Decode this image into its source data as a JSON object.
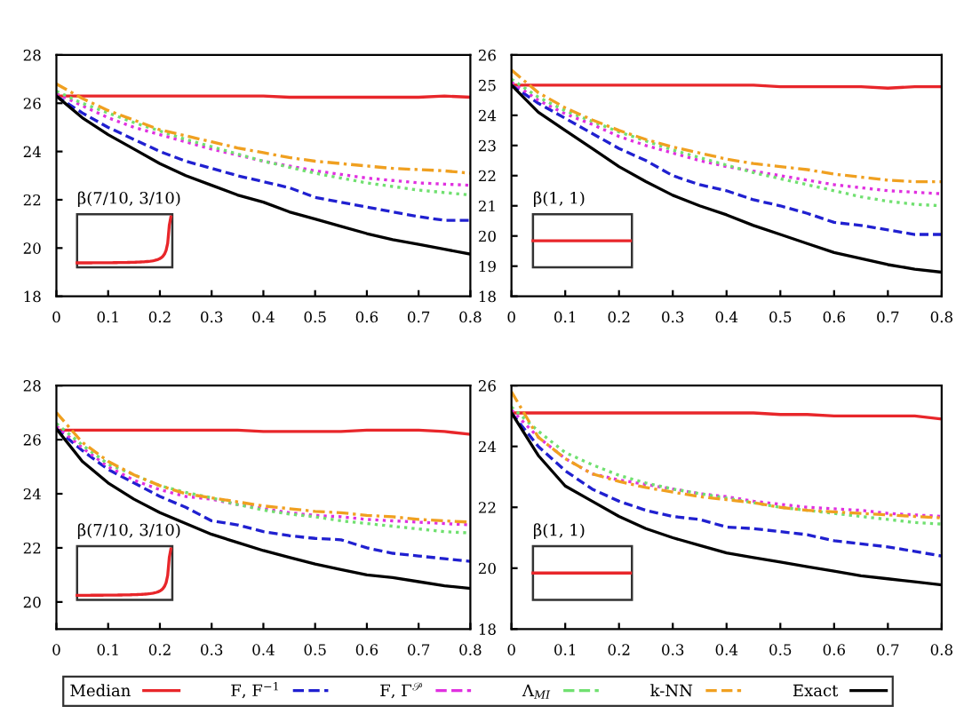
{
  "chart_data": [
    {
      "type": "line",
      "x": [
        0,
        0.05,
        0.1,
        0.15,
        0.2,
        0.25,
        0.3,
        0.35,
        0.4,
        0.45,
        0.5,
        0.55,
        0.6,
        0.65,
        0.7,
        0.75,
        0.8
      ],
      "xlim": [
        0,
        0.8
      ],
      "xticks": [
        0,
        0.1,
        0.2,
        0.3,
        0.4,
        0.5,
        0.6,
        0.7,
        0.8
      ],
      "ylim": [
        18,
        28
      ],
      "yticks": [
        18,
        20,
        22,
        24,
        26,
        28
      ],
      "annotations": [
        "β(7/10, 3/10)"
      ],
      "legend": "bottom",
      "series": [
        {
          "name": "Median",
          "color": "#e8262a",
          "line_style": "solid",
          "values": [
            26.3,
            26.3,
            26.3,
            26.3,
            26.3,
            26.3,
            26.3,
            26.3,
            26.3,
            26.25,
            26.25,
            26.25,
            26.25,
            26.25,
            26.25,
            26.3,
            26.25
          ]
        },
        {
          "name": "F, F$^{−1}$",
          "color": "#2020d0",
          "line_style": "dashed",
          "values": [
            26.3,
            25.6,
            25.0,
            24.5,
            24.0,
            23.6,
            23.3,
            23.0,
            22.75,
            22.5,
            22.1,
            21.9,
            21.7,
            21.5,
            21.3,
            21.15,
            21.15
          ]
        },
        {
          "name": "F, Γ$^{𝒫}$",
          "color": "#e030e0",
          "line_style": "dotted",
          "values": [
            26.4,
            25.9,
            25.4,
            25.0,
            24.7,
            24.4,
            24.1,
            23.85,
            23.6,
            23.4,
            23.2,
            23.05,
            22.9,
            22.8,
            22.7,
            22.65,
            22.6
          ]
        },
        {
          "name": "Λ$_{MI}$",
          "color": "#70e070",
          "line_style": "dotted",
          "values": [
            26.5,
            26.0,
            25.6,
            25.2,
            24.85,
            24.5,
            24.2,
            23.9,
            23.6,
            23.35,
            23.1,
            22.9,
            22.7,
            22.55,
            22.4,
            22.3,
            22.2
          ]
        },
        {
          "name": "k-NN",
          "color": "#f0a020",
          "line_style": "dashdot",
          "values": [
            26.8,
            26.2,
            25.7,
            25.3,
            24.9,
            24.65,
            24.4,
            24.15,
            23.95,
            23.75,
            23.6,
            23.5,
            23.4,
            23.3,
            23.25,
            23.2,
            23.1
          ]
        },
        {
          "name": "Exact",
          "color": "#000000",
          "line_style": "solid",
          "values": [
            26.3,
            25.4,
            24.7,
            24.1,
            23.5,
            23.0,
            22.6,
            22.2,
            21.9,
            21.5,
            21.2,
            20.9,
            20.6,
            20.35,
            20.15,
            19.95,
            19.75
          ]
        }
      ]
    },
    {
      "type": "line",
      "x": [
        0,
        0.05,
        0.1,
        0.15,
        0.2,
        0.25,
        0.3,
        0.35,
        0.4,
        0.45,
        0.5,
        0.55,
        0.6,
        0.65,
        0.7,
        0.75,
        0.8
      ],
      "xlim": [
        0,
        0.8
      ],
      "xticks": [
        0,
        0.1,
        0.2,
        0.3,
        0.4,
        0.5,
        0.6,
        0.7,
        0.8
      ],
      "ylim": [
        18,
        26
      ],
      "yticks": [
        18,
        19,
        20,
        21,
        22,
        23,
        24,
        25,
        26
      ],
      "annotations": [
        "β(1, 1)"
      ],
      "series": [
        {
          "color": "#e8262a",
          "line_style": "solid",
          "values": [
            25.0,
            25.0,
            25.0,
            25.0,
            25.0,
            25.0,
            25.0,
            25.0,
            25.0,
            25.0,
            24.95,
            24.95,
            24.95,
            24.95,
            24.9,
            24.95,
            24.95
          ]
        },
        {
          "color": "#2020d0",
          "line_style": "dashed",
          "values": [
            25.0,
            24.4,
            23.9,
            23.4,
            22.9,
            22.5,
            22.0,
            21.7,
            21.5,
            21.2,
            21.0,
            20.75,
            20.45,
            20.35,
            20.2,
            20.05,
            20.05
          ]
        },
        {
          "color": "#e030e0",
          "line_style": "dotted",
          "values": [
            25.1,
            24.5,
            24.05,
            23.7,
            23.3,
            23.0,
            22.75,
            22.5,
            22.3,
            22.15,
            22.0,
            21.85,
            21.7,
            21.6,
            21.5,
            21.45,
            21.4
          ]
        },
        {
          "color": "#70e070",
          "line_style": "dotted",
          "values": [
            25.2,
            24.6,
            24.15,
            23.8,
            23.45,
            23.15,
            22.85,
            22.6,
            22.35,
            22.1,
            21.9,
            21.7,
            21.5,
            21.3,
            21.15,
            21.05,
            21.0
          ]
        },
        {
          "color": "#f0a020",
          "line_style": "dashdot",
          "values": [
            25.5,
            24.75,
            24.25,
            23.85,
            23.5,
            23.2,
            22.95,
            22.75,
            22.55,
            22.4,
            22.3,
            22.2,
            22.05,
            21.95,
            21.85,
            21.8,
            21.8
          ]
        },
        {
          "color": "#000000",
          "line_style": "solid",
          "values": [
            25.0,
            24.1,
            23.5,
            22.9,
            22.3,
            21.8,
            21.35,
            21.0,
            20.7,
            20.35,
            20.05,
            19.75,
            19.45,
            19.25,
            19.05,
            18.9,
            18.8
          ]
        }
      ]
    },
    {
      "type": "line",
      "x": [
        0,
        0.05,
        0.1,
        0.15,
        0.2,
        0.25,
        0.3,
        0.35,
        0.4,
        0.45,
        0.5,
        0.55,
        0.6,
        0.65,
        0.7,
        0.75,
        0.8
      ],
      "xlim": [
        0,
        0.8
      ],
      "xticks": [
        0,
        0.1,
        0.2,
        0.3,
        0.4,
        0.5,
        0.6,
        0.7,
        0.8
      ],
      "ylim": [
        19,
        28
      ],
      "yticks": [
        20,
        22,
        24,
        26,
        28
      ],
      "annotations": [
        "β(7/10, 3/10)"
      ],
      "series": [
        {
          "color": "#e8262a",
          "line_style": "solid",
          "values": [
            26.35,
            26.35,
            26.35,
            26.35,
            26.35,
            26.35,
            26.35,
            26.35,
            26.3,
            26.3,
            26.3,
            26.3,
            26.35,
            26.35,
            26.35,
            26.3,
            26.2
          ]
        },
        {
          "color": "#2020d0",
          "line_style": "dashed",
          "values": [
            26.4,
            25.6,
            24.9,
            24.4,
            23.9,
            23.5,
            23.0,
            22.85,
            22.6,
            22.45,
            22.35,
            22.3,
            22.0,
            21.8,
            21.7,
            21.6,
            21.5
          ]
        },
        {
          "color": "#e030e0",
          "line_style": "dotted",
          "values": [
            26.5,
            25.7,
            25.0,
            24.5,
            24.15,
            23.9,
            23.8,
            23.6,
            23.45,
            23.3,
            23.2,
            23.15,
            23.05,
            23.0,
            22.95,
            22.9,
            22.85
          ]
        },
        {
          "color": "#70e070",
          "line_style": "dotted",
          "values": [
            26.6,
            25.8,
            25.1,
            24.7,
            24.3,
            24.05,
            23.85,
            23.6,
            23.4,
            23.25,
            23.15,
            23.0,
            22.9,
            22.8,
            22.7,
            22.6,
            22.55
          ]
        },
        {
          "color": "#f0a020",
          "line_style": "dashdot",
          "values": [
            27.0,
            25.9,
            25.2,
            24.7,
            24.3,
            24.0,
            23.85,
            23.7,
            23.55,
            23.45,
            23.35,
            23.3,
            23.2,
            23.15,
            23.05,
            23.0,
            22.95
          ]
        },
        {
          "color": "#000000",
          "line_style": "solid",
          "values": [
            26.4,
            25.2,
            24.4,
            23.8,
            23.3,
            22.9,
            22.5,
            22.2,
            21.9,
            21.65,
            21.4,
            21.2,
            21.0,
            20.9,
            20.75,
            20.6,
            20.5
          ]
        }
      ]
    },
    {
      "type": "line",
      "x": [
        0,
        0.05,
        0.1,
        0.15,
        0.2,
        0.25,
        0.3,
        0.35,
        0.4,
        0.45,
        0.5,
        0.55,
        0.6,
        0.65,
        0.7,
        0.75,
        0.8
      ],
      "xlim": [
        0,
        0.8
      ],
      "xticks": [
        0,
        0.1,
        0.2,
        0.3,
        0.4,
        0.5,
        0.6,
        0.7,
        0.8
      ],
      "ylim": [
        18,
        26
      ],
      "yticks": [
        18,
        20,
        22,
        24,
        26
      ],
      "annotations": [
        "β(1, 1)"
      ],
      "series": [
        {
          "color": "#e8262a",
          "line_style": "solid",
          "values": [
            25.1,
            25.1,
            25.1,
            25.1,
            25.1,
            25.1,
            25.1,
            25.1,
            25.1,
            25.1,
            25.05,
            25.05,
            25.0,
            25.0,
            25.0,
            25.0,
            24.9
          ]
        },
        {
          "color": "#2020d0",
          "line_style": "dashed",
          "values": [
            25.1,
            24.0,
            23.2,
            22.6,
            22.2,
            21.9,
            21.7,
            21.6,
            21.35,
            21.3,
            21.2,
            21.1,
            20.9,
            20.8,
            20.7,
            20.55,
            20.4
          ]
        },
        {
          "color": "#e030e0",
          "line_style": "dotted",
          "values": [
            25.2,
            24.3,
            23.6,
            23.1,
            22.9,
            22.75,
            22.6,
            22.45,
            22.35,
            22.2,
            22.1,
            22.0,
            21.95,
            21.9,
            21.8,
            21.75,
            21.7
          ]
        },
        {
          "color": "#70e070",
          "line_style": "dotted",
          "values": [
            25.3,
            24.5,
            23.8,
            23.4,
            23.05,
            22.8,
            22.6,
            22.45,
            22.3,
            22.15,
            22.0,
            21.9,
            21.8,
            21.7,
            21.6,
            21.5,
            21.45
          ]
        },
        {
          "color": "#f0a020",
          "line_style": "dashdot",
          "values": [
            25.8,
            24.3,
            23.6,
            23.1,
            22.85,
            22.65,
            22.5,
            22.35,
            22.25,
            22.15,
            22.0,
            21.9,
            21.85,
            21.8,
            21.75,
            21.7,
            21.65
          ]
        },
        {
          "color": "#000000",
          "line_style": "solid",
          "values": [
            25.1,
            23.7,
            22.7,
            22.2,
            21.7,
            21.3,
            21.0,
            20.75,
            20.5,
            20.35,
            20.2,
            20.05,
            19.9,
            19.75,
            19.65,
            19.55,
            19.45
          ]
        }
      ]
    }
  ]
}
